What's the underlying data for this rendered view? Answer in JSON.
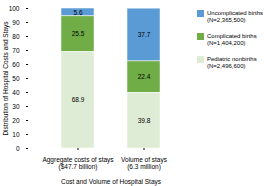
{
  "chart_data": {
    "type": "bar",
    "stacked": true,
    "data_labels": true,
    "legend": "right",
    "grid": false,
    "categories": [
      "Aggregate costs of stays\n($47.7 billion)",
      "Volume of stays\n(6.3 million)"
    ],
    "series": [
      {
        "name": "Uncomplicated births\n(N=2,365,500)",
        "color": "#5b9bd5",
        "values": [
          5.6,
          37.7
        ]
      },
      {
        "name": "Complicated births\n(N=1,404,200)",
        "color": "#70ad47",
        "values": [
          25.5,
          22.4
        ]
      },
      {
        "name": "Pediatric nonbirths\n(N=2,496,600)",
        "color": "#deecd5",
        "values": [
          68.9,
          39.8
        ]
      }
    ],
    "xlabel": "Cost and Volume of Hospital Stays",
    "ylabel": "Distribution of Hospital Costs and Stays",
    "ylim": [
      0,
      100
    ],
    "yticks": [
      0,
      10,
      20,
      30,
      40,
      50,
      60,
      70,
      80,
      90,
      100
    ]
  }
}
